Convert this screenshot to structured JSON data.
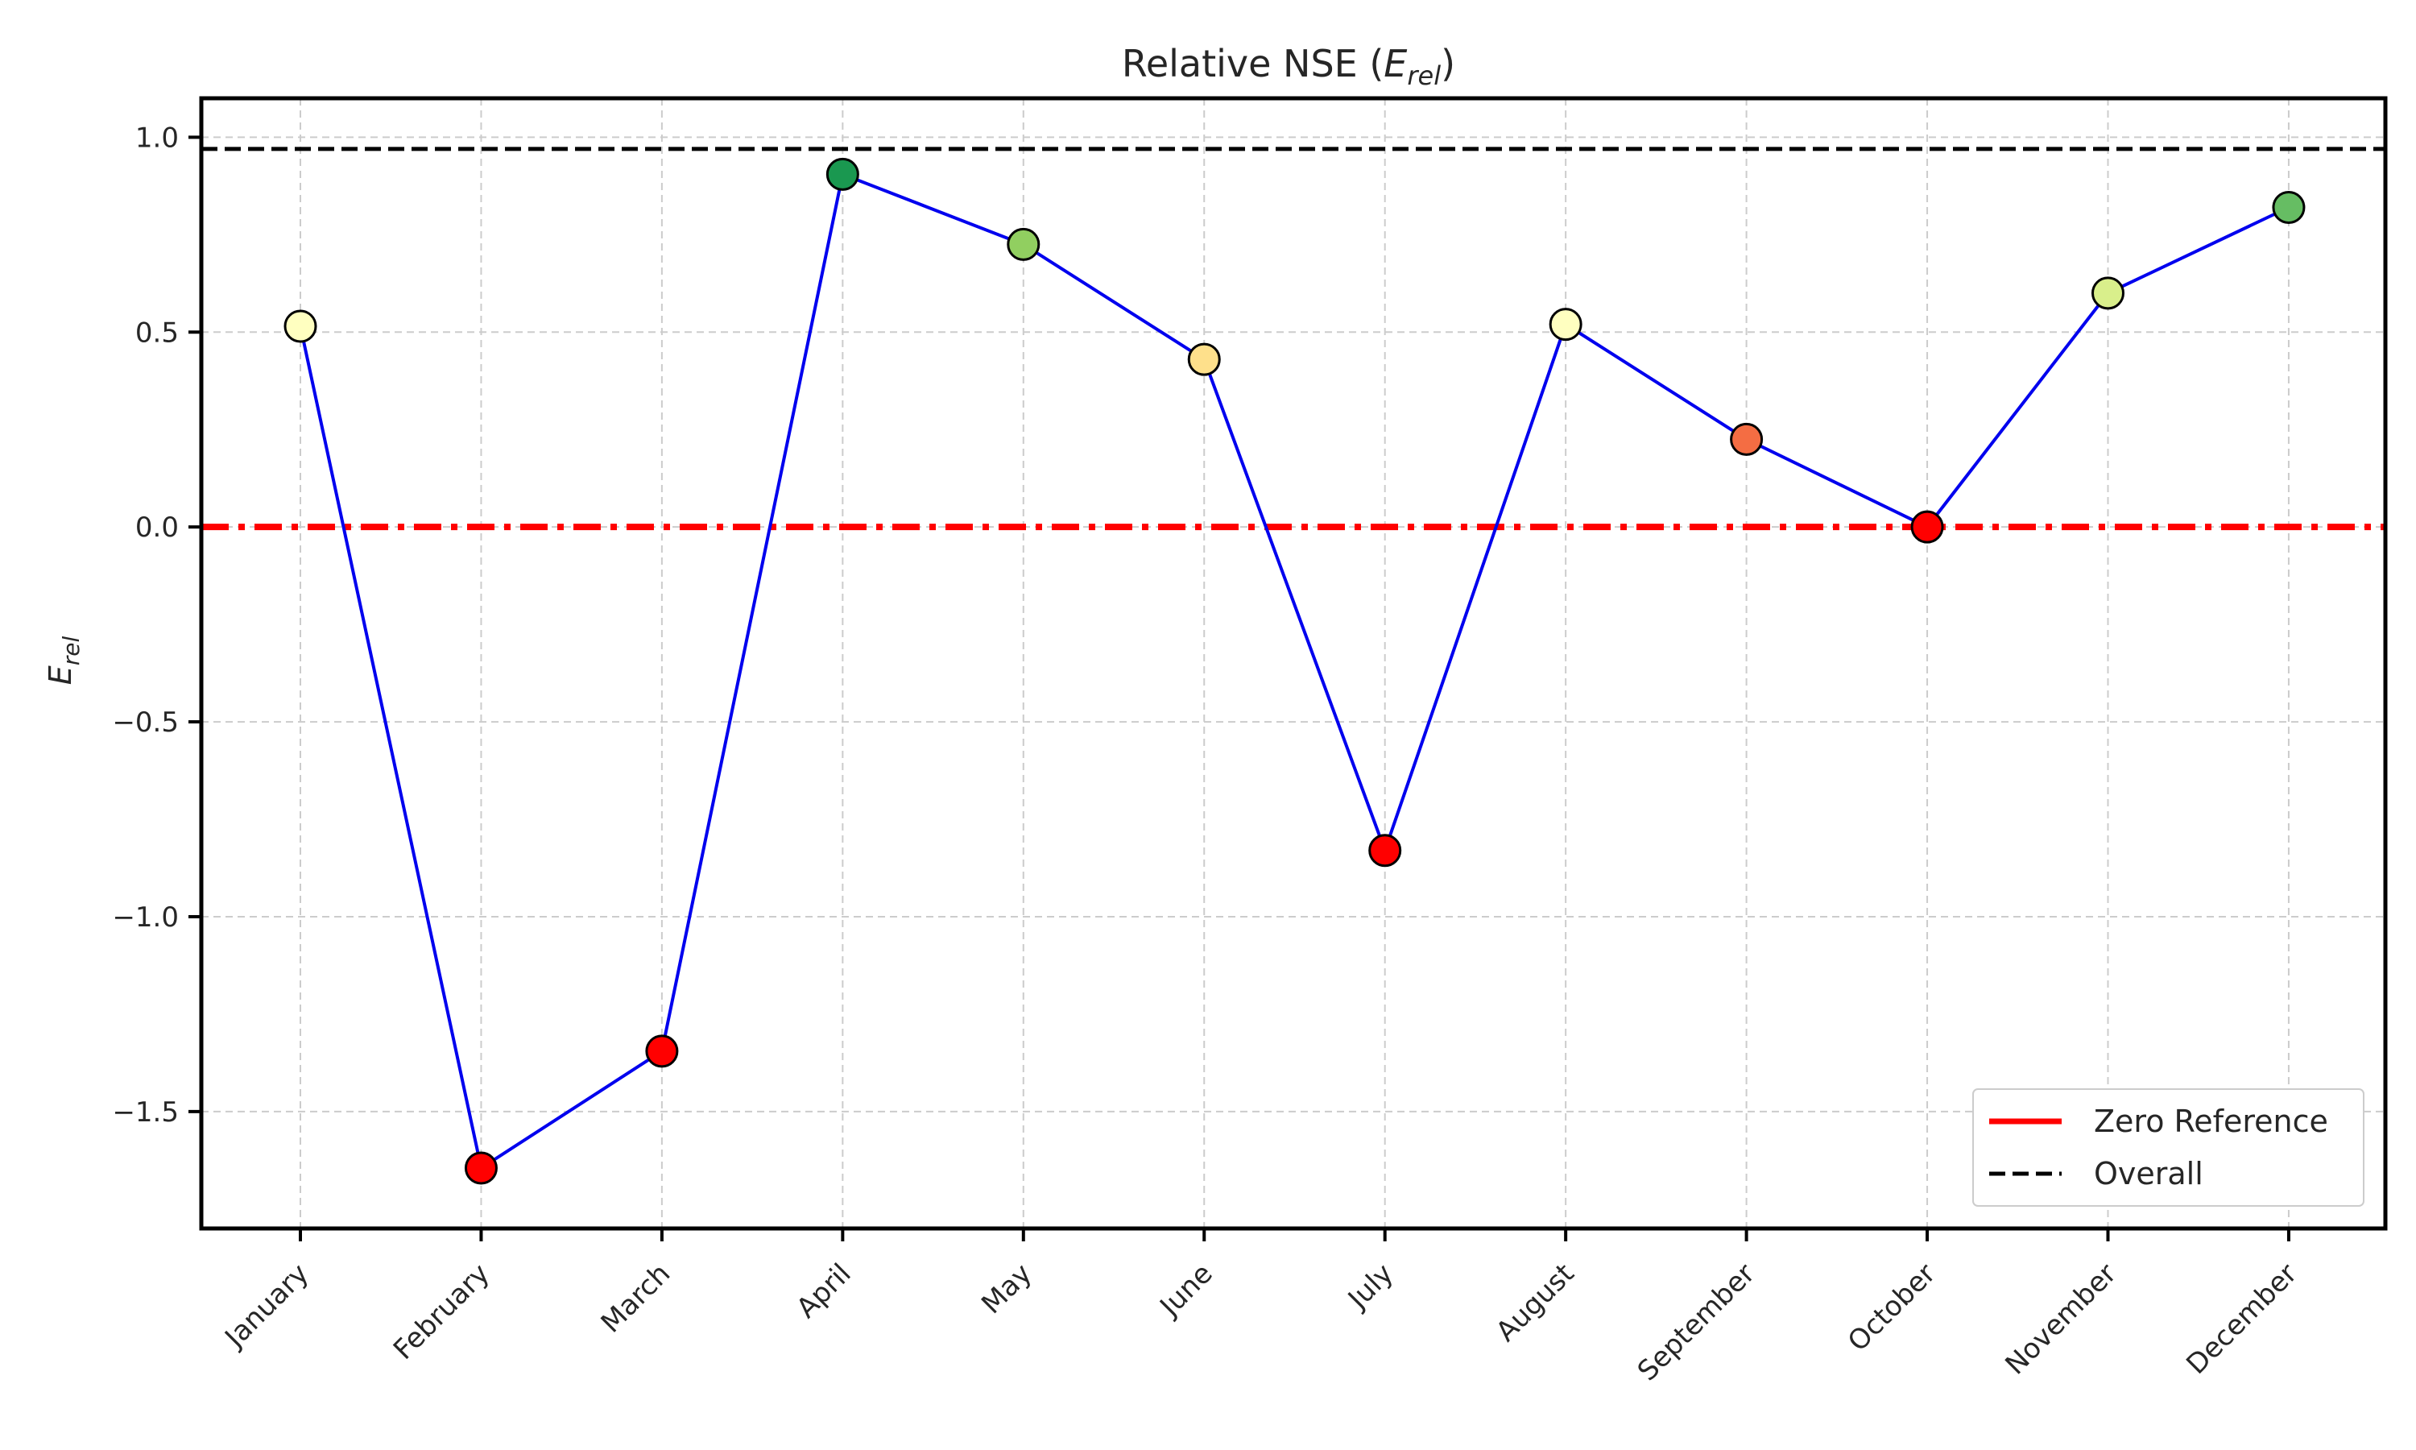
{
  "chart_data": {
    "type": "line",
    "title_main": "Relative NSE (",
    "title_sym": "E",
    "title_sub": "rel",
    "title_close": ")",
    "ylabel_sym": "E",
    "ylabel_sub": "rel",
    "categories": [
      "January",
      "February",
      "March",
      "April",
      "May",
      "June",
      "July",
      "August",
      "September",
      "October",
      "November",
      "December"
    ],
    "values": [
      0.515,
      -1.645,
      -1.345,
      0.905,
      0.725,
      0.43,
      -0.83,
      0.52,
      0.225,
      0.0,
      0.6,
      0.82
    ],
    "marker_colors": [
      "#ffffc0",
      "#ff0000",
      "#ff0000",
      "#1a9850",
      "#91cf60",
      "#fee08b",
      "#ff0000",
      "#ffffc0",
      "#f46d43",
      "#ff0000",
      "#d9ef8b",
      "#66bd63"
    ],
    "line_color": "#0000ee",
    "ylim": [
      -1.8,
      1.1
    ],
    "yticks": [
      1.0,
      0.5,
      0.0,
      -0.5,
      -1.0,
      -1.5
    ],
    "ytick_labels": [
      "1.0",
      "0.5",
      "0.0",
      "−0.5",
      "−1.0",
      "−1.5"
    ],
    "grid": true,
    "reference_lines": [
      {
        "name": "Zero Reference",
        "y": 0.0,
        "color": "#ff0000",
        "style": "dash-dot"
      },
      {
        "name": "Overall",
        "y": 0.97,
        "color": "#000000",
        "style": "dashed"
      }
    ],
    "legend_position": "bottom-right"
  }
}
